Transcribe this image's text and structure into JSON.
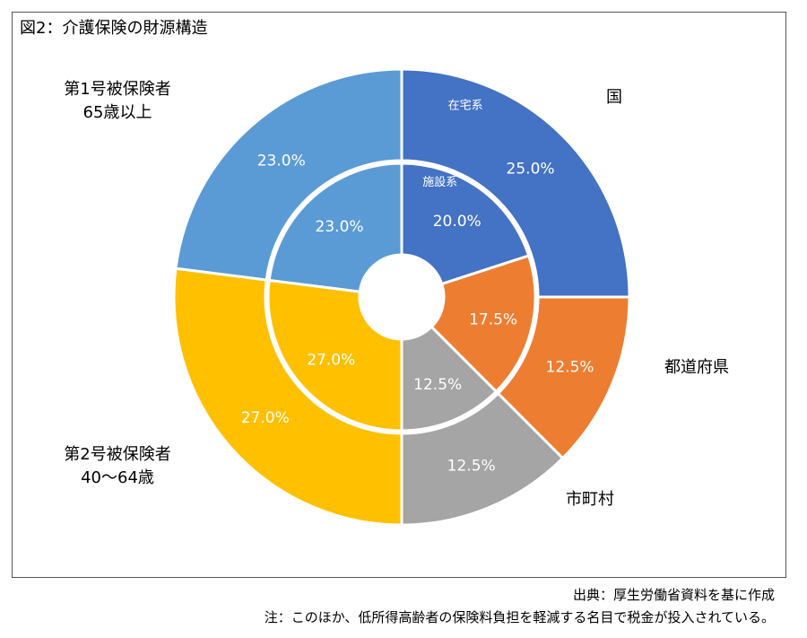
{
  "title": "図2：介護保険の財源構造",
  "labels": {
    "kuni": "国",
    "todofuken": "都道府県",
    "shichoson": "市町村",
    "dai1_line1": "第1号被保険者",
    "dai1_line2": "65歳以上",
    "dai2_line1": "第2号被保険者",
    "dai2_line2": "40～64歳"
  },
  "footnotes": {
    "source": "出典：厚生労働省資料を基に作成",
    "note": "注：このほか、低所得高齢者の保険料負担を軽減する名目で税金が投入されている。"
  },
  "chart_data": {
    "type": "pie",
    "subtype": "doughnut",
    "categories": [
      "国",
      "都道府県",
      "市町村",
      "第2号被保険者",
      "第1号被保険者"
    ],
    "colors": [
      "#4472C4",
      "#ED7D31",
      "#A5A5A5",
      "#FFC000",
      "#5B9BD5"
    ],
    "series": [
      {
        "name": "在宅系",
        "ring": "outer",
        "values": [
          25.0,
          12.5,
          12.5,
          27.0,
          23.0
        ],
        "labels": [
          "25.0%",
          "12.5%",
          "12.5%",
          "27.0%",
          "23.0%"
        ]
      },
      {
        "name": "施設系",
        "ring": "inner",
        "values": [
          20.0,
          17.5,
          12.5,
          27.0,
          23.0
        ],
        "labels": [
          "20.0%",
          "17.5%",
          "12.5%",
          "27.0%",
          "23.0%"
        ]
      }
    ]
  }
}
